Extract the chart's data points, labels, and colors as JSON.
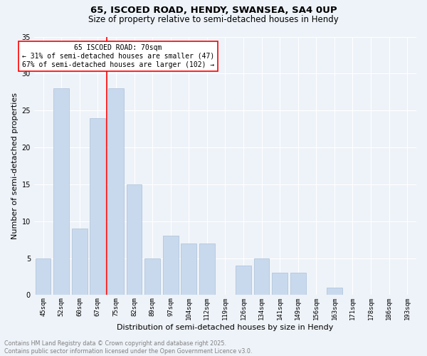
{
  "title_line1": "65, ISCOED ROAD, HENDY, SWANSEA, SA4 0UP",
  "title_line2": "Size of property relative to semi-detached houses in Hendy",
  "xlabel": "Distribution of semi-detached houses by size in Hendy",
  "ylabel": "Number of semi-detached properties",
  "categories": [
    "45sqm",
    "52sqm",
    "60sqm",
    "67sqm",
    "75sqm",
    "82sqm",
    "89sqm",
    "97sqm",
    "104sqm",
    "112sqm",
    "119sqm",
    "126sqm",
    "134sqm",
    "141sqm",
    "149sqm",
    "156sqm",
    "163sqm",
    "171sqm",
    "178sqm",
    "186sqm",
    "193sqm"
  ],
  "values": [
    5,
    28,
    9,
    24,
    28,
    15,
    5,
    8,
    7,
    7,
    0,
    4,
    5,
    3,
    3,
    0,
    1,
    0,
    0,
    0,
    0
  ],
  "bar_color": "#c9d9ed",
  "bar_edge_color": "#aabfd8",
  "vline_index": 3,
  "vline_color": "red",
  "annotation_text": "65 ISCOED ROAD: 70sqm\n← 31% of semi-detached houses are smaller (47)\n67% of semi-detached houses are larger (102) →",
  "annotation_box_color": "white",
  "annotation_box_edge_color": "red",
  "ylim": [
    0,
    35
  ],
  "yticks": [
    0,
    5,
    10,
    15,
    20,
    25,
    30,
    35
  ],
  "bg_color": "#eef3f9",
  "grid_color": "white",
  "footnote": "Contains HM Land Registry data © Crown copyright and database right 2025.\nContains public sector information licensed under the Open Government Licence v3.0.",
  "title_fontsize": 9.5,
  "subtitle_fontsize": 8.5,
  "axis_label_fontsize": 8,
  "tick_fontsize": 6.5,
  "annotation_fontsize": 7,
  "footnote_fontsize": 5.8
}
